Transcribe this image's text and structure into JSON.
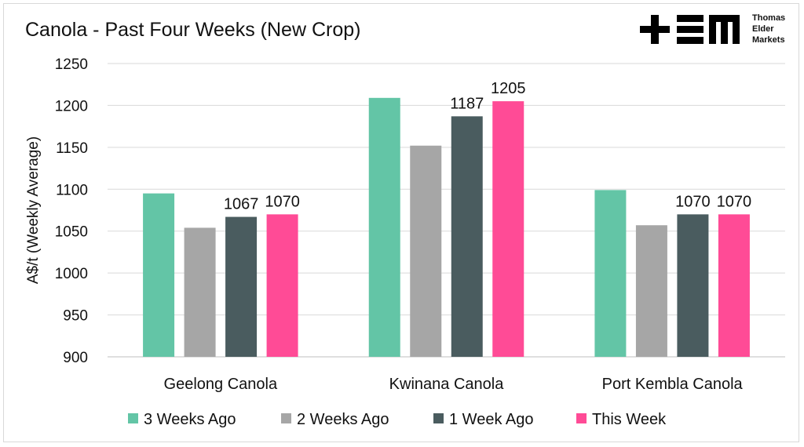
{
  "logo": {
    "text": "Thomas Elder Markets",
    "lines": [
      "Thomas",
      "Elder",
      "Markets"
    ]
  },
  "chart_data": {
    "type": "bar",
    "title": "Canola - Past Four Weeks (New Crop)",
    "xlabel": "",
    "ylabel": "A$/t (Weekly Average)",
    "ylim": [
      900,
      1250
    ],
    "yticks": [
      900,
      950,
      1000,
      1050,
      1100,
      1150,
      1200,
      1250
    ],
    "grid": true,
    "legend_position": "bottom",
    "categories": [
      "Geelong Canola",
      "Kwinana Canola",
      "Port Kembla Canola"
    ],
    "series": [
      {
        "name": "3 Weeks Ago",
        "color": "#63c5a6",
        "values": [
          1095,
          1209,
          1099
        ],
        "labels": [
          null,
          null,
          null
        ]
      },
      {
        "name": "2 Weeks Ago",
        "color": "#a6a6a6",
        "values": [
          1054,
          1152,
          1057
        ],
        "labels": [
          null,
          null,
          null
        ]
      },
      {
        "name": "1 Week Ago",
        "color": "#4a5c5f",
        "values": [
          1067,
          1187,
          1070
        ],
        "labels": [
          "1067",
          "1187",
          "1070"
        ]
      },
      {
        "name": "This Week",
        "color": "#ff4b96",
        "values": [
          1070,
          1205,
          1070
        ],
        "labels": [
          "1070",
          "1205",
          "1070"
        ]
      }
    ]
  }
}
